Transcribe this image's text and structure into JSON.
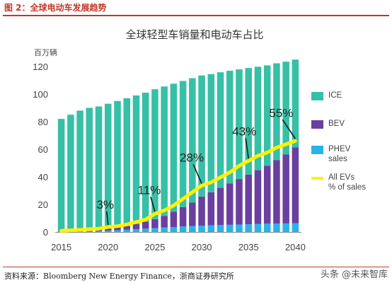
{
  "caption": "图 2：全球电动车发展趋势",
  "source": "资料来源：Bloomberg New Energy Finance，浙商证券研究所",
  "watermark": "头条 @未来智库",
  "chart_data": {
    "type": "bar",
    "title": "全球轻型车销量和电动车占比",
    "ylabel": "百万辆",
    "xlabel": "",
    "ylim": [
      0,
      120
    ],
    "y_ticks": [
      0,
      20,
      40,
      60,
      80,
      100,
      120
    ],
    "x_tick_labels": [
      "2015",
      "2020",
      "2025",
      "2030",
      "2035",
      "2040"
    ],
    "categories": [
      "2015",
      "2016",
      "2017",
      "2018",
      "2019",
      "2020",
      "2021",
      "2022",
      "2023",
      "2024",
      "2025",
      "2026",
      "2027",
      "2028",
      "2029",
      "2030",
      "2031",
      "2032",
      "2033",
      "2034",
      "2035",
      "2036",
      "2037",
      "2038",
      "2039",
      "2040"
    ],
    "stacked": true,
    "series": [
      {
        "name": "PHEV sales",
        "color": "#29b3e8",
        "values": [
          0.3,
          0.4,
          0.5,
          0.7,
          0.8,
          1.0,
          1.3,
          1.6,
          2.0,
          2.4,
          2.8,
          3.2,
          3.6,
          4.0,
          4.3,
          4.6,
          4.8,
          5.0,
          5.2,
          5.4,
          5.6,
          5.8,
          6.0,
          6.1,
          6.2,
          6.3
        ]
      },
      {
        "name": "BEV",
        "color": "#6a3fa0",
        "values": [
          0.3,
          0.4,
          0.6,
          0.8,
          1.0,
          1.5,
          2.0,
          2.8,
          3.8,
          5.0,
          6.5,
          8.5,
          11,
          14,
          17,
          21,
          24,
          27,
          30,
          33,
          36,
          39,
          42,
          46,
          50,
          55
        ]
      },
      {
        "name": "ICE",
        "color": "#36c0a6",
        "values": [
          81.4,
          84.2,
          86.9,
          88.5,
          89.2,
          90.5,
          91.7,
          92.6,
          93.2,
          93.6,
          94.2,
          93.8,
          92.9,
          91.5,
          90.2,
          87.9,
          85.7,
          83.8,
          81.7,
          79.5,
          77.3,
          75.0,
          72.8,
          70.2,
          67.3,
          63.7
        ]
      }
    ],
    "ev_share": {
      "name": "All EVs\n% of sales",
      "color": "#fff200",
      "values": [
        0.7,
        1.0,
        1.3,
        1.7,
        2.0,
        3.0,
        3.5,
        4.5,
        6.0,
        7.5,
        11.0,
        13.0,
        16.0,
        20.0,
        24.0,
        28.0,
        30.0,
        33.0,
        36.0,
        40.0,
        43.0,
        46.0,
        48.0,
        51.0,
        53.0,
        55.0
      ],
      "labels": [
        {
          "index": 5,
          "text": "3%"
        },
        {
          "index": 10,
          "text": "11%"
        },
        {
          "index": 15,
          "text": "28%"
        },
        {
          "index": 20,
          "text": "43%"
        },
        {
          "index": 25,
          "text": "55%"
        }
      ]
    },
    "legend": [
      {
        "label": "ICE",
        "sub": "",
        "color": "#36c0a6",
        "kind": "box"
      },
      {
        "label": "BEV",
        "sub": "",
        "color": "#6a3fa0",
        "kind": "box"
      },
      {
        "label": "PHEV",
        "sub": "sales",
        "color": "#29b3e8",
        "kind": "box"
      },
      {
        "label": "All EVs",
        "sub": "% of sales",
        "color": "#fff200",
        "kind": "line"
      }
    ],
    "legend_position": "right",
    "grid": false
  }
}
